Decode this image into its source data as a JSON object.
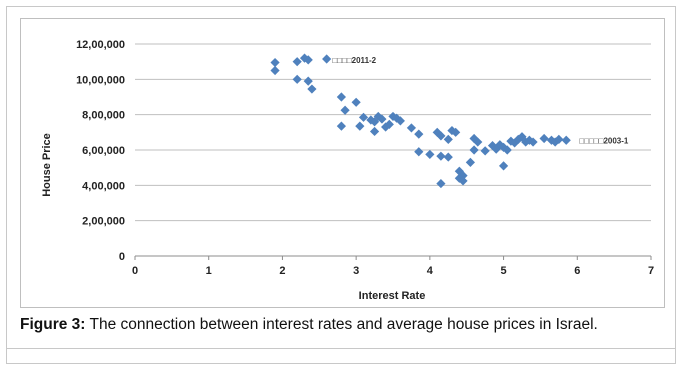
{
  "figure": {
    "caption_label": "Figure 3:",
    "caption_text": " The connection between interest rates and average house prices in Israel."
  },
  "chart_data": {
    "type": "scatter",
    "title": "",
    "xlabel": "Interest Rate",
    "ylabel": "House Price",
    "xlim": [
      0,
      7
    ],
    "ylim": [
      0,
      1200000
    ],
    "x_ticks": [
      "0",
      "1",
      "2",
      "3",
      "4",
      "5",
      "6",
      "7"
    ],
    "y_ticks": [
      "0",
      "2,00,000",
      "4,00,000",
      "6,00,000",
      "8,00,000",
      "10,00,000",
      "12,00,000"
    ],
    "grid": "horizontal",
    "marker_color": "#4f81bd",
    "series": [
      {
        "points": [
          {
            "x": 1.9,
            "y": 1095000
          },
          {
            "x": 1.9,
            "y": 1050000
          },
          {
            "x": 2.2,
            "y": 1100000
          },
          {
            "x": 2.3,
            "y": 1120000
          },
          {
            "x": 2.35,
            "y": 1110000
          },
          {
            "x": 2.6,
            "y": 1115000
          },
          {
            "x": 2.2,
            "y": 1000000
          },
          {
            "x": 2.35,
            "y": 990000
          },
          {
            "x": 2.4,
            "y": 945000
          },
          {
            "x": 2.8,
            "y": 900000
          },
          {
            "x": 3.0,
            "y": 870000
          },
          {
            "x": 2.85,
            "y": 825000
          },
          {
            "x": 3.1,
            "y": 785000
          },
          {
            "x": 3.2,
            "y": 770000
          },
          {
            "x": 3.3,
            "y": 790000
          },
          {
            "x": 3.25,
            "y": 760000
          },
          {
            "x": 3.35,
            "y": 775000
          },
          {
            "x": 3.5,
            "y": 790000
          },
          {
            "x": 3.55,
            "y": 780000
          },
          {
            "x": 3.6,
            "y": 765000
          },
          {
            "x": 3.45,
            "y": 745000
          },
          {
            "x": 3.4,
            "y": 730000
          },
          {
            "x": 2.8,
            "y": 735000
          },
          {
            "x": 3.05,
            "y": 735000
          },
          {
            "x": 3.25,
            "y": 705000
          },
          {
            "x": 3.75,
            "y": 725000
          },
          {
            "x": 3.85,
            "y": 690000
          },
          {
            "x": 3.85,
            "y": 590000
          },
          {
            "x": 4.0,
            "y": 575000
          },
          {
            "x": 4.1,
            "y": 700000
          },
          {
            "x": 4.15,
            "y": 680000
          },
          {
            "x": 4.25,
            "y": 660000
          },
          {
            "x": 4.3,
            "y": 710000
          },
          {
            "x": 4.35,
            "y": 700000
          },
          {
            "x": 4.15,
            "y": 565000
          },
          {
            "x": 4.25,
            "y": 560000
          },
          {
            "x": 4.15,
            "y": 410000
          },
          {
            "x": 4.4,
            "y": 480000
          },
          {
            "x": 4.45,
            "y": 455000
          },
          {
            "x": 4.4,
            "y": 440000
          },
          {
            "x": 4.45,
            "y": 425000
          },
          {
            "x": 4.55,
            "y": 530000
          },
          {
            "x": 4.6,
            "y": 600000
          },
          {
            "x": 4.6,
            "y": 665000
          },
          {
            "x": 4.65,
            "y": 645000
          },
          {
            "x": 4.75,
            "y": 595000
          },
          {
            "x": 4.85,
            "y": 625000
          },
          {
            "x": 4.9,
            "y": 605000
          },
          {
            "x": 4.95,
            "y": 630000
          },
          {
            "x": 5.0,
            "y": 615000
          },
          {
            "x": 5.05,
            "y": 600000
          },
          {
            "x": 5.0,
            "y": 510000
          },
          {
            "x": 5.1,
            "y": 650000
          },
          {
            "x": 5.15,
            "y": 640000
          },
          {
            "x": 5.2,
            "y": 660000
          },
          {
            "x": 5.25,
            "y": 675000
          },
          {
            "x": 5.3,
            "y": 645000
          },
          {
            "x": 5.35,
            "y": 655000
          },
          {
            "x": 5.4,
            "y": 645000
          },
          {
            "x": 5.55,
            "y": 665000
          },
          {
            "x": 5.65,
            "y": 655000
          },
          {
            "x": 5.7,
            "y": 645000
          },
          {
            "x": 5.75,
            "y": 660000
          },
          {
            "x": 5.85,
            "y": 655000
          }
        ]
      }
    ],
    "annotations": [
      {
        "text": "□□□□2011-2",
        "x": 2.65,
        "y": 1115000
      },
      {
        "text": "□□□□□2003-1",
        "x": 6.0,
        "y": 660000
      }
    ]
  }
}
